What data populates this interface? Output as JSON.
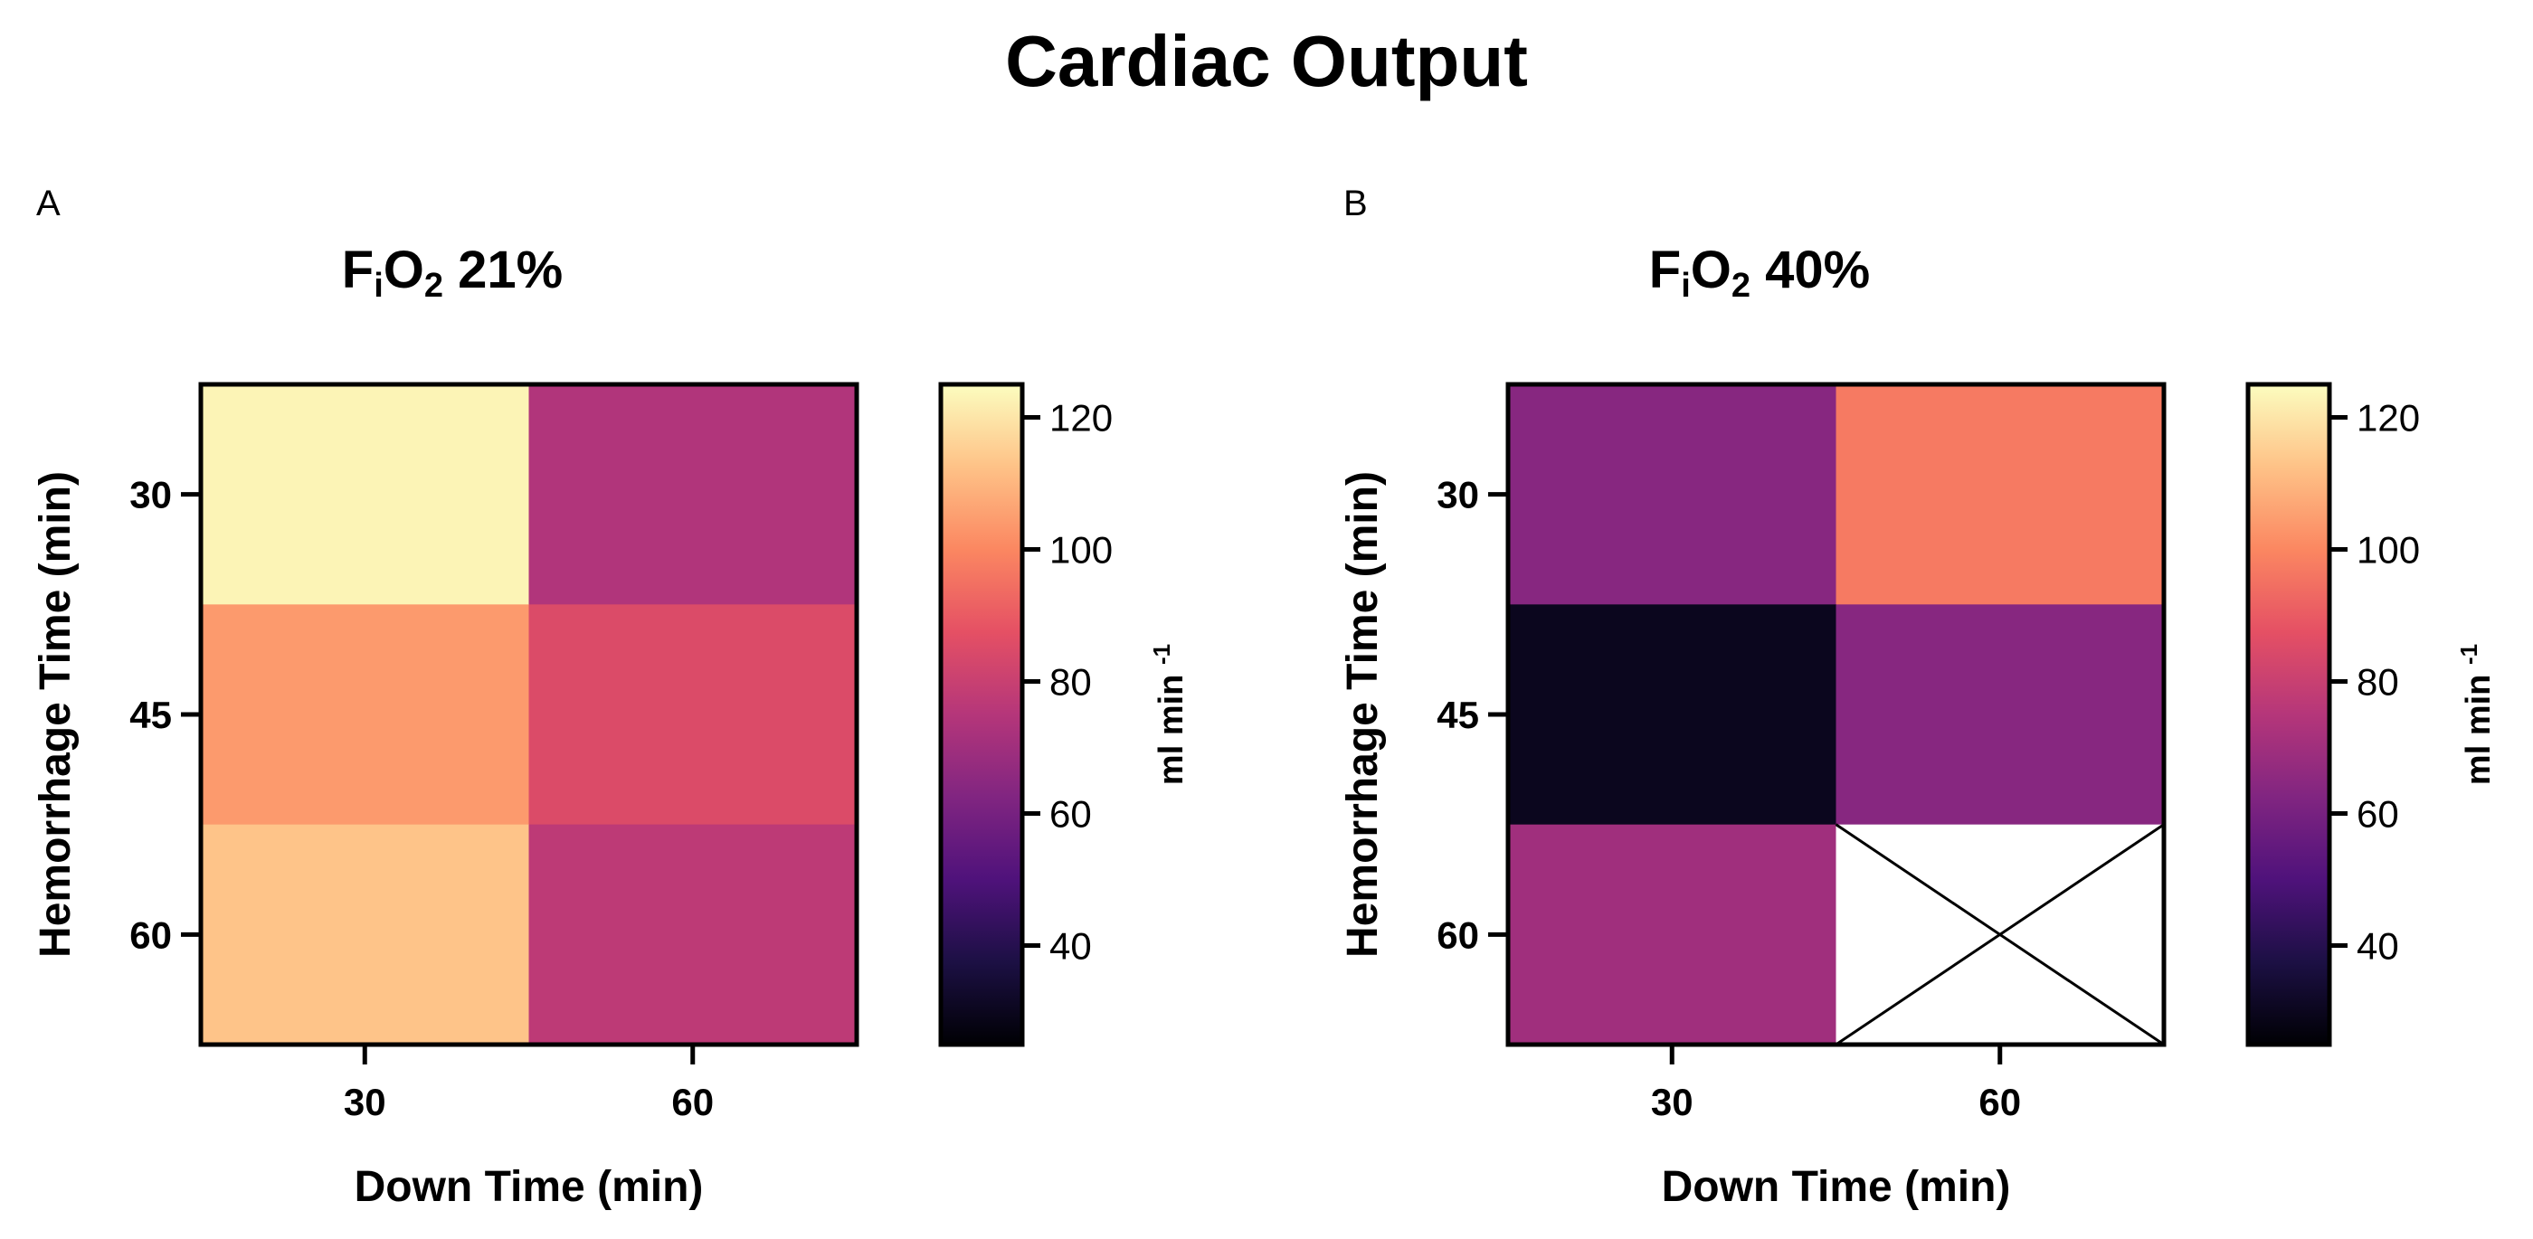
{
  "figure": {
    "title": "Cardiac Output"
  },
  "colorbar": {
    "range": [
      25,
      125
    ],
    "ticks": [
      "40",
      "60",
      "80",
      "100",
      "120"
    ],
    "label_main": "ml min",
    "label_sup": "-1",
    "colors": [
      "#000004",
      "#1c1044",
      "#4f127b",
      "#812581",
      "#b5367a",
      "#e55064",
      "#fb8761",
      "#fec287",
      "#fcfdbf"
    ]
  },
  "chart_data": [
    {
      "type": "heatmap",
      "panel_letter": "A",
      "title": {
        "prefix": "F",
        "sub": "i",
        "mid": "O",
        "sub2": "2",
        "suffix": " 21%"
      },
      "xlabel": "Down Time (min)",
      "ylabel": "Hemorrhage  Time  (min)",
      "x_categories": [
        "30",
        "60"
      ],
      "y_categories": [
        "30",
        "45",
        "60"
      ],
      "values": [
        [
          123,
          74
        ],
        [
          104,
          85
        ],
        [
          113,
          77
        ]
      ],
      "missing": [
        [
          false,
          false
        ],
        [
          false,
          false
        ],
        [
          false,
          false
        ]
      ],
      "colorbar_range": [
        25,
        125
      ]
    },
    {
      "type": "heatmap",
      "panel_letter": "B",
      "title": {
        "prefix": "F",
        "sub": "i",
        "mid": "O",
        "sub2": "2",
        "suffix": " 40%"
      },
      "xlabel": "Down Time (min)",
      "ylabel": "Hemorrhage  Time  (min)",
      "x_categories": [
        "30",
        "60"
      ],
      "y_categories": [
        "30",
        "45",
        "60"
      ],
      "values": [
        [
          64,
          97
        ],
        [
          30,
          64
        ],
        [
          70,
          null
        ]
      ],
      "missing": [
        [
          false,
          false
        ],
        [
          false,
          false
        ],
        [
          false,
          true
        ]
      ],
      "colorbar_range": [
        25,
        125
      ]
    }
  ]
}
